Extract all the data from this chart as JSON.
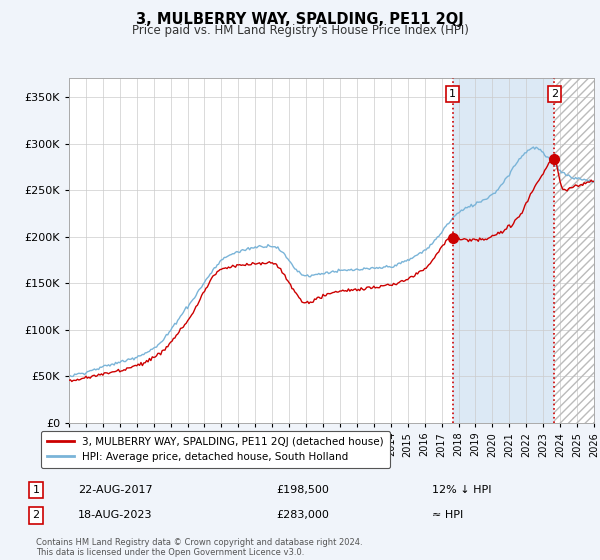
{
  "title": "3, MULBERRY WAY, SPALDING, PE11 2QJ",
  "subtitle": "Price paid vs. HM Land Registry's House Price Index (HPI)",
  "hpi_label": "HPI: Average price, detached house, South Holland",
  "property_label": "3, MULBERRY WAY, SPALDING, PE11 2QJ (detached house)",
  "sale1_date": "22-AUG-2017",
  "sale1_price": "£198,500",
  "sale1_hpi": "12% ↓ HPI",
  "sale2_date": "18-AUG-2023",
  "sale2_price": "£283,000",
  "sale2_hpi": "≈ HPI",
  "hpi_color": "#7ab4d8",
  "property_color": "#cc0000",
  "sale1_year": 2017.65,
  "sale2_year": 2023.65,
  "sale1_value": 198500,
  "sale2_value": 283000,
  "ylim": [
    0,
    370000
  ],
  "yticks": [
    0,
    50000,
    100000,
    150000,
    200000,
    250000,
    300000,
    350000
  ],
  "footer": "Contains HM Land Registry data © Crown copyright and database right 2024.\nThis data is licensed under the Open Government Licence v3.0.",
  "bg_color": "#f0f4fa",
  "plot_bg": "#ffffff",
  "shade_color": "#dce9f5",
  "hatch_color": "#cccccc"
}
